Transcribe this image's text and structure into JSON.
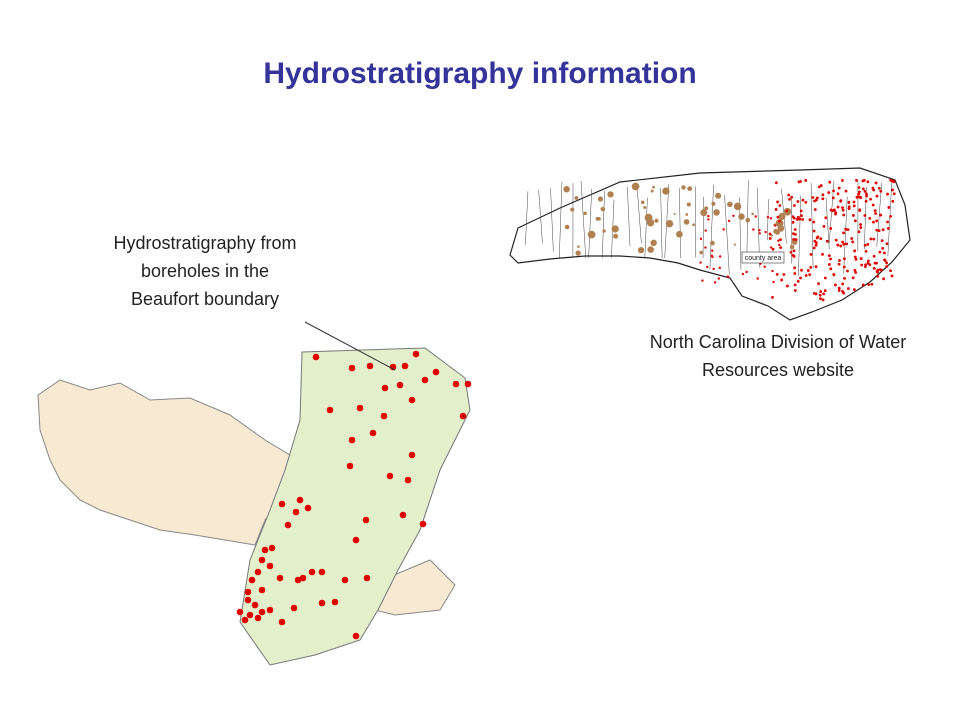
{
  "slide": {
    "title": "Hydrostratigraphy information",
    "left_caption": [
      "Hydrostratigraphy from",
      "boreholes in the",
      "Beaufort boundary"
    ],
    "right_caption": [
      "North Carolina Division of Water",
      "Resources website"
    ],
    "map_label": "county area"
  }
}
